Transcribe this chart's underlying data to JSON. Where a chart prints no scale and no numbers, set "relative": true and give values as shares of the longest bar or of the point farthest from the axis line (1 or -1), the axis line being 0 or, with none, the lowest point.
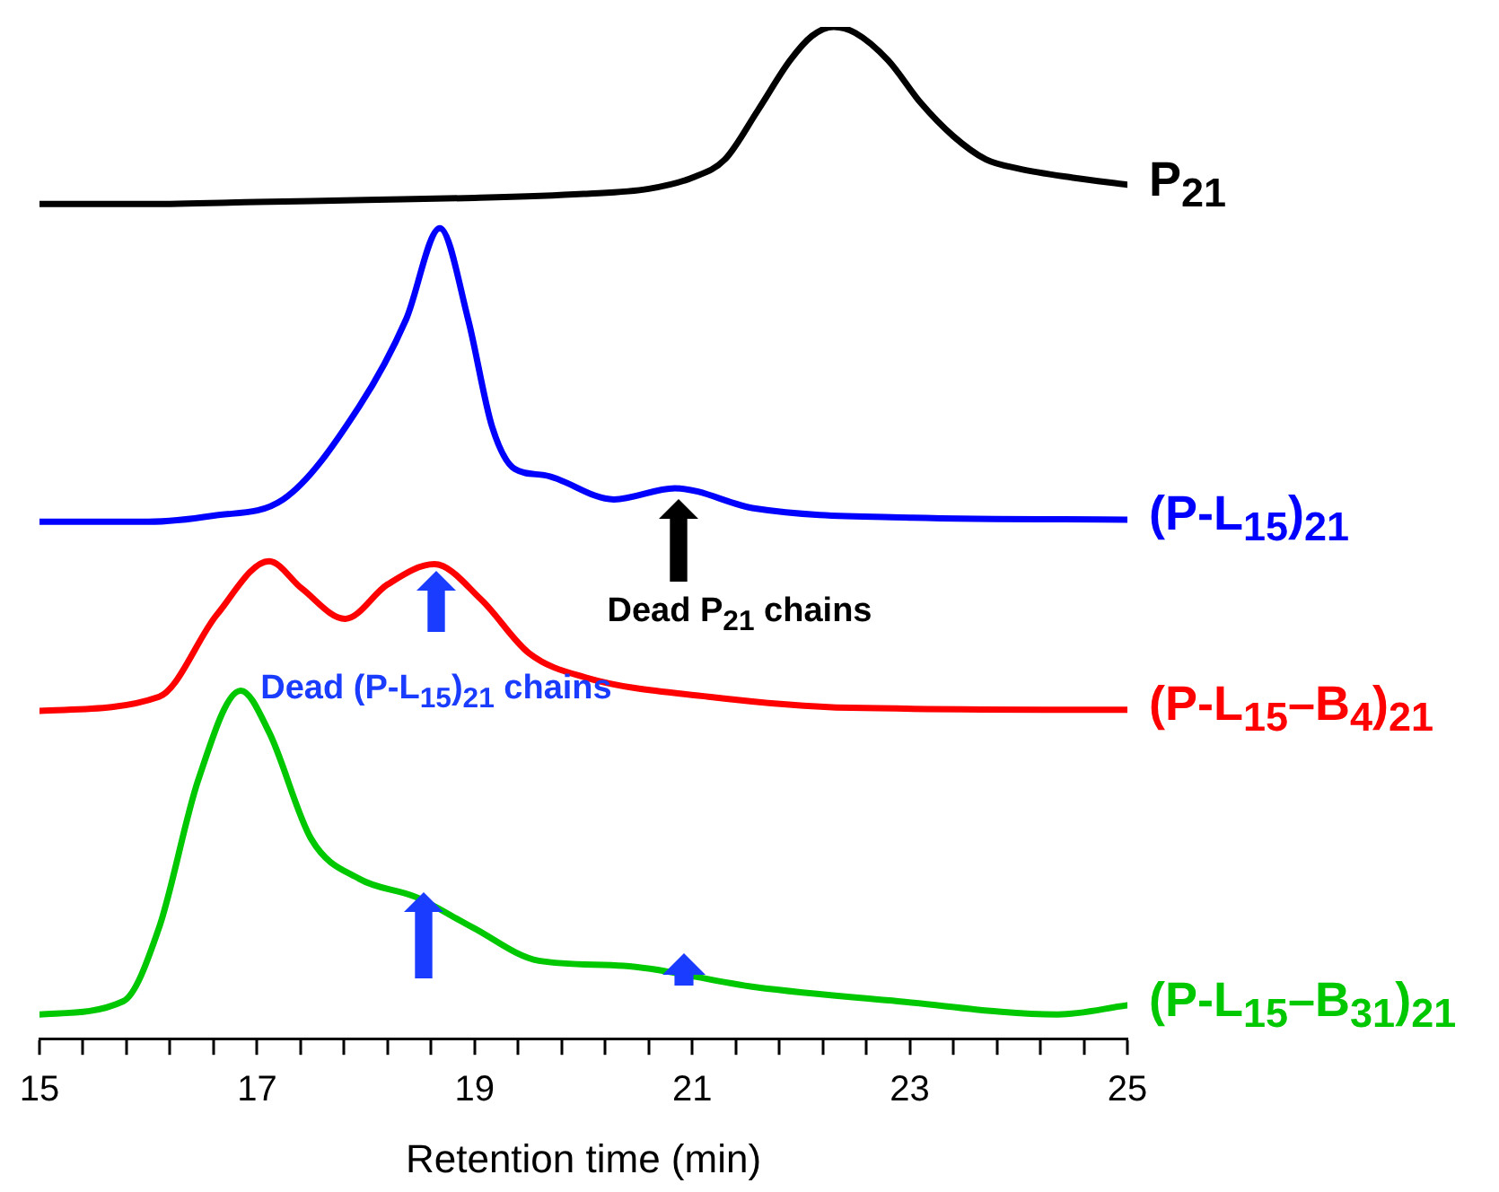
{
  "chart_data": {
    "type": "line",
    "relative": true,
    "xlabel": "Retention time (min)",
    "xlim": [
      15,
      25
    ],
    "xticks": [
      15,
      {
        "value": 15.4,
        "label": null
      },
      {
        "value": 15.8,
        "label": null
      },
      {
        "value": 16.2,
        "label": null
      },
      {
        "value": 16.6,
        "label": null
      },
      17,
      {
        "value": 17.4,
        "label": null
      },
      {
        "value": 17.8,
        "label": null
      },
      {
        "value": 18.2,
        "label": null
      },
      {
        "value": 18.6,
        "label": null
      },
      19,
      {
        "value": 19.4,
        "label": null
      },
      {
        "value": 19.8,
        "label": null
      },
      {
        "value": 20.2,
        "label": null
      },
      {
        "value": 20.6,
        "label": null
      },
      21,
      {
        "value": 21.4,
        "label": null
      },
      {
        "value": 21.8,
        "label": null
      },
      {
        "value": 22.2,
        "label": null
      },
      {
        "value": 22.6,
        "label": null
      },
      23,
      {
        "value": 23.4,
        "label": null
      },
      {
        "value": 23.8,
        "label": null
      },
      {
        "value": 24.2,
        "label": null
      },
      {
        "value": 24.6,
        "label": null
      },
      25
    ],
    "grid": false,
    "legend": false,
    "marker": "none",
    "line_style": "solid",
    "series": [
      {
        "name": "P$_{21}$",
        "color": "#000000",
        "x": [
          15,
          16,
          17,
          18,
          19,
          20,
          20.6,
          21,
          21.3,
          21.6,
          21.9,
          22.1,
          22.3,
          22.5,
          22.8,
          23.1,
          23.4,
          23.7,
          24,
          24.5,
          25
        ],
        "values": [
          0.825,
          0.825,
          0.827,
          0.829,
          0.831,
          0.835,
          0.84,
          0.851,
          0.869,
          0.917,
          0.967,
          0.991,
          1,
          0.994,
          0.967,
          0.925,
          0.892,
          0.869,
          0.86,
          0.851,
          0.844
        ]
      },
      {
        "name": "(P-L$_{15}$)$_{21}$",
        "color": "#0000ff",
        "x": [
          15,
          16,
          16.6,
          17.24,
          17.94,
          18.37,
          18.68,
          18.94,
          19.16,
          19.37,
          19.64,
          20.28,
          20.84,
          21.58,
          23,
          25
        ],
        "values": [
          0.511,
          0.511,
          0.517,
          0.533,
          0.625,
          0.711,
          0.801,
          0.711,
          0.605,
          0.563,
          0.557,
          0.533,
          0.544,
          0.524,
          0.515,
          0.513
        ]
      },
      {
        "name": "(P-L$_{15}$–B$_{4}$)$_{21}$",
        "color": "#ff0000",
        "x": [
          15,
          16.1,
          16.63,
          17.11,
          17.41,
          17.81,
          18.2,
          18.63,
          19.06,
          19.5,
          20.02,
          21.15,
          22.46,
          25
        ],
        "values": [
          0.324,
          0.338,
          0.419,
          0.472,
          0.445,
          0.415,
          0.449,
          0.469,
          0.434,
          0.381,
          0.357,
          0.338,
          0.327,
          0.325
        ]
      },
      {
        "name": "(P-L$_{15}$–B$_{31}$)$_{21}$",
        "color": "#00c800",
        "x": [
          15,
          15.77,
          16.1,
          16.46,
          16.85,
          17.11,
          17.5,
          17.94,
          18.46,
          18.98,
          19.59,
          20.37,
          21.58,
          22.89,
          24.36,
          25
        ],
        "values": [
          0.024,
          0.037,
          0.11,
          0.256,
          0.344,
          0.303,
          0.197,
          0.158,
          0.14,
          0.11,
          0.077,
          0.072,
          0.051,
          0.037,
          0.024,
          0.033
        ]
      }
    ],
    "annotations": [
      "Dead P$_{21}$ chains",
      "Dead (P-L$_{15}$)$_{21}$ chains"
    ]
  }
}
